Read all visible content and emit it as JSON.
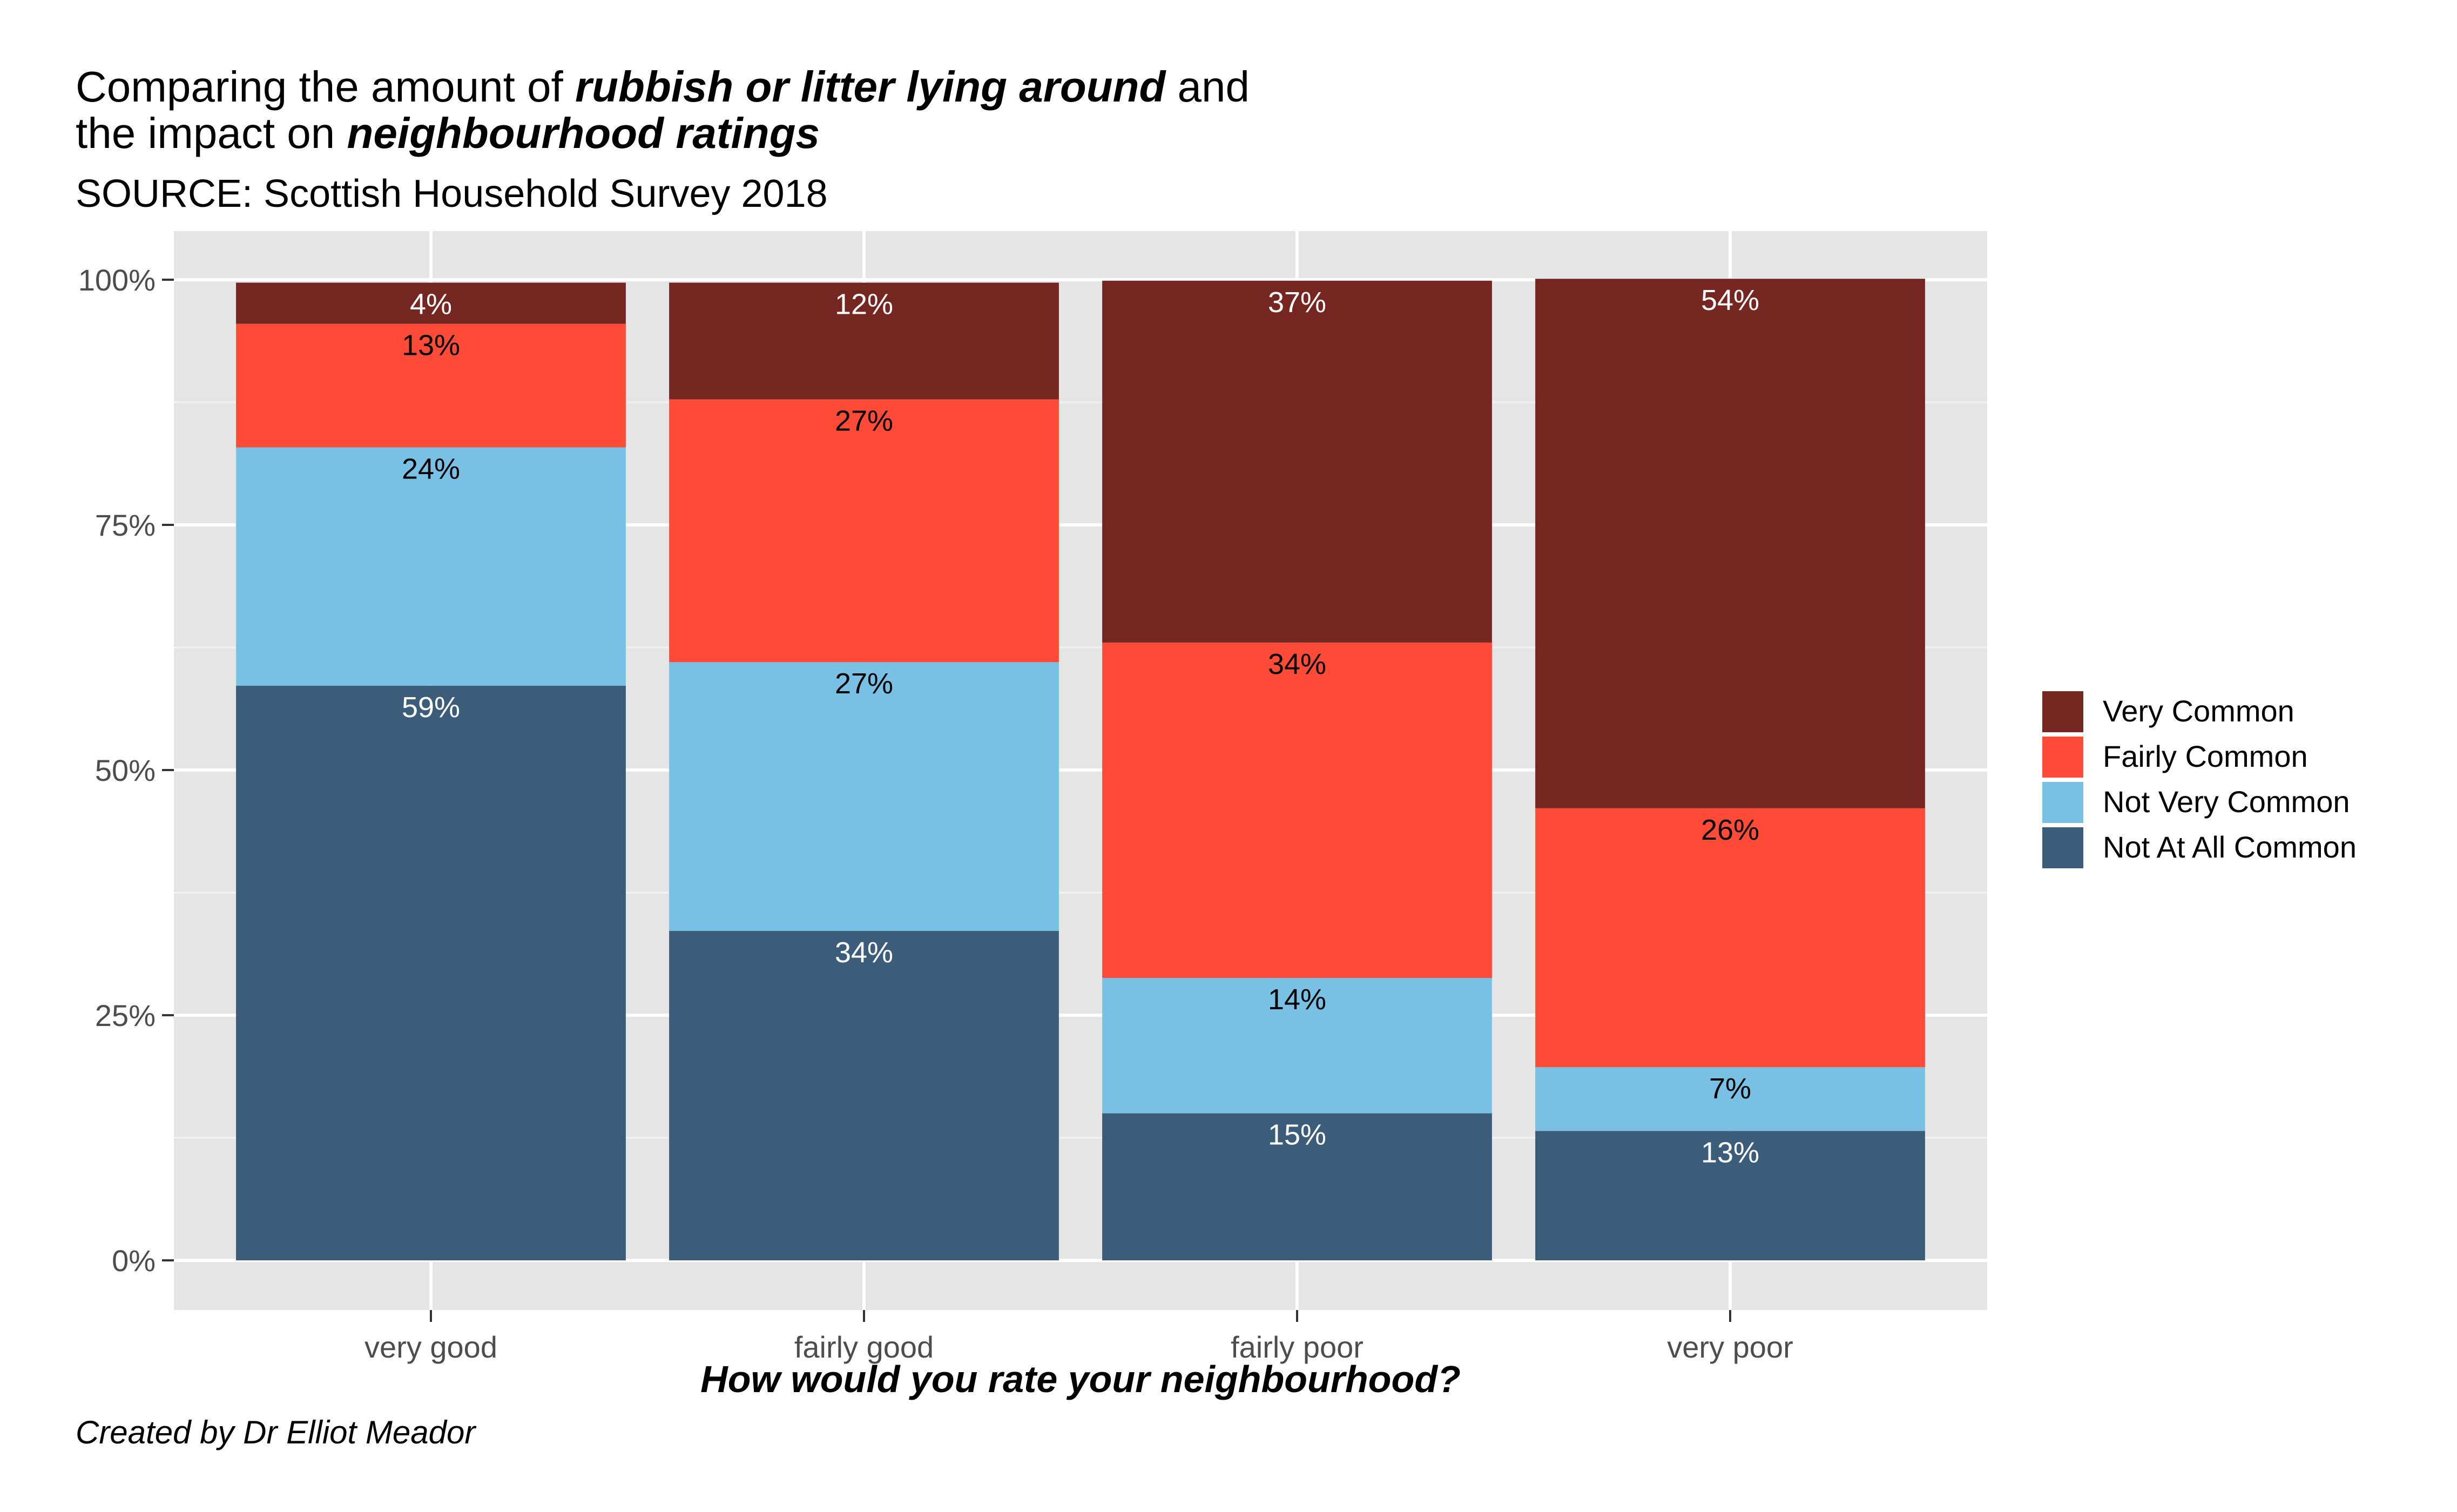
{
  "title": {
    "line1_prefix": "Comparing the amount of ",
    "line1_emph": "rubbish or litter lying around",
    "line1_suffix": " and",
    "line2_prefix": "the impact on ",
    "line2_emph": "neighbourhood ratings"
  },
  "subtitle": "SOURCE: Scottish Household Survey 2018",
  "caption": "Created by Dr Elliot Meador",
  "chart_data": {
    "type": "bar",
    "stacked": true,
    "percent": true,
    "categories": [
      "very good",
      "fairly good",
      "fairly poor",
      "very poor"
    ],
    "xlabel": "How would you rate your neighbourhood?",
    "ylabel": "",
    "ylim": [
      0,
      100
    ],
    "yticks": [
      "0%",
      "25%",
      "50%",
      "75%",
      "100%"
    ],
    "grid": true,
    "legend_position": "right",
    "series": [
      {
        "name": "Not At All Common",
        "color": "#3c5d79",
        "label_color": "#ffffff",
        "values": [
          58.6,
          33.6,
          15.0,
          13.2
        ],
        "labels": [
          "59%",
          "34%",
          "15%",
          "13%"
        ]
      },
      {
        "name": "Not Very Common",
        "color": "#78c1e4",
        "label_color": "#000000",
        "values": [
          24.3,
          27.4,
          13.8,
          6.5
        ],
        "labels": [
          "24%",
          "27%",
          "14%",
          "7%"
        ]
      },
      {
        "name": "Fairly Common",
        "color": "#ff4b38",
        "label_color": "#000000",
        "values": [
          12.6,
          26.8,
          34.2,
          26.4
        ],
        "labels": [
          "13%",
          "27%",
          "34%",
          "26%"
        ]
      },
      {
        "name": "Very Common",
        "color": "#762620",
        "label_color": "#ffffff",
        "values": [
          4.2,
          11.9,
          36.9,
          54.0
        ],
        "labels": [
          "4%",
          "12%",
          "37%",
          "54%"
        ]
      }
    ],
    "legend_order": [
      "Very Common",
      "Fairly Common",
      "Not Very Common",
      "Not At All Common"
    ]
  }
}
